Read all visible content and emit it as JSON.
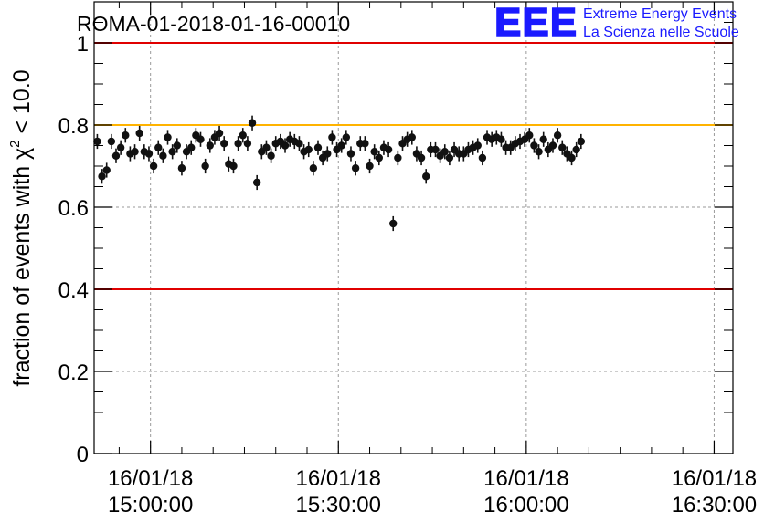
{
  "chart_data": {
    "type": "scatter",
    "title": "ROMA-01-2018-01-16-00010",
    "ylabel": "fraction of events with χ² < 10.0",
    "ylabel_parts": {
      "prefix": "fraction of events with ",
      "symbol": "χ",
      "superscript": "2",
      "suffix": " < 10.0"
    },
    "logo": {
      "text": "EEE",
      "line1": "Extreme Energy Events",
      "line2": "La Scienza nelle Scuole",
      "color": "#1a1aff"
    },
    "x_range_minutes": [
      -9,
      93
    ],
    "ylim": [
      0,
      1.1
    ],
    "yticks": [
      {
        "value": 0,
        "label": "0"
      },
      {
        "value": 0.2,
        "label": "0.2"
      },
      {
        "value": 0.4,
        "label": "0.4"
      },
      {
        "value": 0.6,
        "label": "0.6"
      },
      {
        "value": 0.8,
        "label": "0.8"
      },
      {
        "value": 1,
        "label": "1"
      }
    ],
    "xticks": [
      {
        "minute": 0,
        "date": "16/01/18",
        "time": "15:00:00"
      },
      {
        "minute": 30,
        "date": "16/01/18",
        "time": "15:30:00"
      },
      {
        "minute": 60,
        "date": "16/01/18",
        "time": "16:00:00"
      },
      {
        "minute": 90,
        "date": "16/01/18",
        "time": "16:30:00"
      }
    ],
    "grid": true,
    "reference_lines": [
      {
        "value": 1.0,
        "color": "#e00000"
      },
      {
        "value": 0.8,
        "color": "#ffb300"
      },
      {
        "value": 0.4,
        "color": "#e00000"
      }
    ],
    "series": [
      {
        "marker_color": "#111111",
        "error": 0.018,
        "x_start_minute": -8.5,
        "x_step_minute": 0.75,
        "values": [
          0.76,
          0.675,
          0.69,
          0.76,
          0.725,
          0.745,
          0.775,
          0.73,
          0.735,
          0.78,
          0.735,
          0.73,
          0.7,
          0.745,
          0.725,
          0.77,
          0.735,
          0.75,
          0.695,
          0.735,
          0.745,
          0.775,
          0.765,
          0.7,
          0.75,
          0.77,
          0.78,
          0.755,
          0.705,
          0.7,
          0.755,
          0.775,
          0.755,
          0.805,
          0.66,
          0.735,
          0.745,
          0.725,
          0.755,
          0.76,
          0.75,
          0.765,
          0.76,
          0.755,
          0.735,
          0.74,
          0.695,
          0.745,
          0.72,
          0.73,
          0.77,
          0.74,
          0.75,
          0.77,
          0.73,
          0.695,
          0.755,
          0.755,
          0.7,
          0.735,
          0.72,
          0.745,
          0.74,
          0.56,
          0.72,
          0.755,
          0.765,
          0.77,
          0.73,
          0.72,
          0.675,
          0.74,
          0.74,
          0.725,
          0.735,
          0.72,
          0.74,
          0.73,
          0.73,
          0.74,
          0.745,
          0.75,
          0.72,
          0.77,
          0.765,
          0.77,
          0.765,
          0.745,
          0.745,
          0.755,
          0.76,
          0.765,
          0.775,
          0.75,
          0.735,
          0.765,
          0.74,
          0.75,
          0.775,
          0.745,
          0.73,
          0.72,
          0.74,
          0.76
        ]
      }
    ]
  }
}
